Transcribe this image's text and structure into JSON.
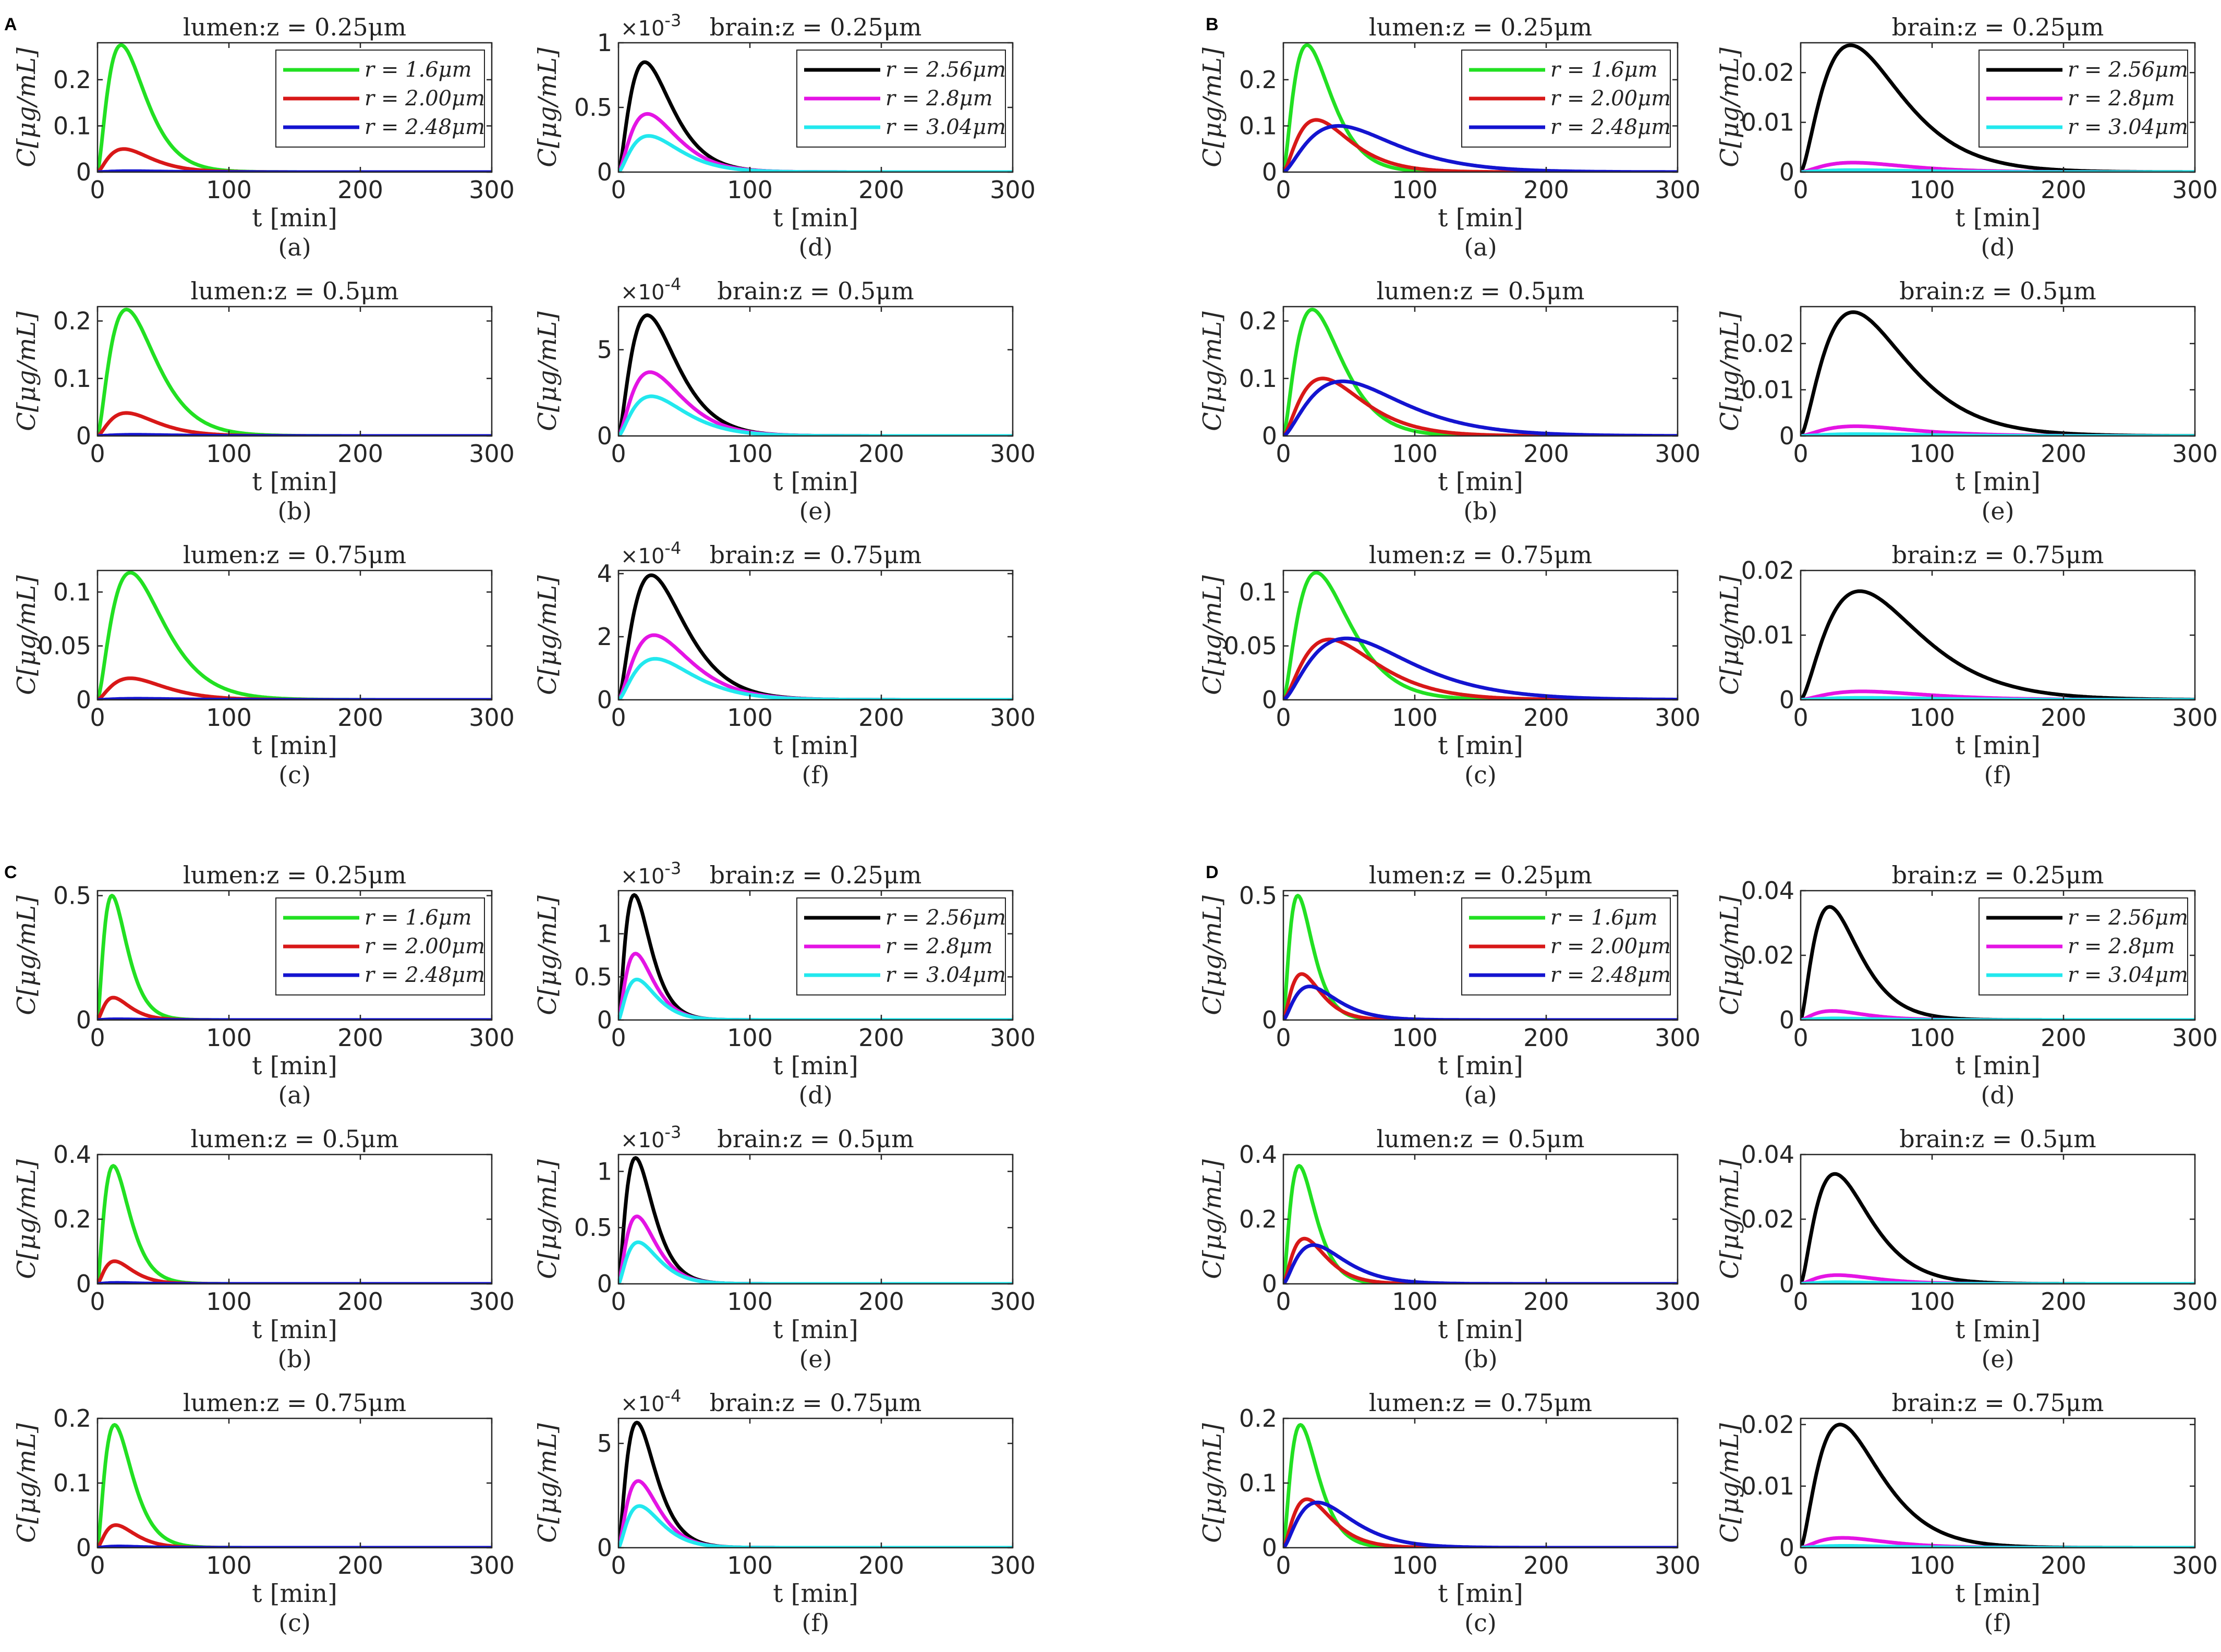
{
  "colors": {
    "green": "#22e022",
    "red": "#d81818",
    "blue": "#1414d0",
    "black": "#000000",
    "magenta": "#e414e4",
    "cyan": "#22e8ee",
    "axis": "#262626"
  },
  "common": {
    "xlabel": "t [min]",
    "ylabel": "C[μg/mL]",
    "xlim": [
      0,
      300
    ],
    "xticks": [
      "0",
      "100",
      "200",
      "300"
    ]
  },
  "panels": [
    "A",
    "B",
    "C",
    "D"
  ],
  "chart_data": [
    {
      "panel": "A",
      "sub": "(a)",
      "type": "line",
      "title": "lumen:z = 0.25μm",
      "ylim": [
        0,
        0.28
      ],
      "yticks": [
        [
          0,
          "0"
        ],
        [
          0.1,
          "0.1"
        ],
        [
          0.2,
          "0.2"
        ]
      ],
      "legend": [
        "r = 1.6μm",
        "r = 2.00μm",
        "r = 2.48μm"
      ],
      "series": [
        {
          "name": "r = 1.6μm",
          "color": "green",
          "peak": 0.275,
          "tpeak": 18
        },
        {
          "name": "r = 2.00μm",
          "color": "red",
          "peak": 0.05,
          "tpeak": 20
        },
        {
          "name": "r = 2.48μm",
          "color": "blue",
          "peak": 0.002,
          "tpeak": 25
        }
      ]
    },
    {
      "panel": "A",
      "sub": "(b)",
      "type": "line",
      "title": "lumen:z = 0.5μm",
      "ylim": [
        0,
        0.225
      ],
      "yticks": [
        [
          0,
          "0"
        ],
        [
          0.1,
          "0.1"
        ],
        [
          0.2,
          "0.2"
        ]
      ],
      "series": [
        {
          "name": "r = 1.6μm",
          "color": "green",
          "peak": 0.22,
          "tpeak": 22
        },
        {
          "name": "r = 2.00μm",
          "color": "red",
          "peak": 0.04,
          "tpeak": 22
        },
        {
          "name": "r = 2.48μm",
          "color": "blue",
          "peak": 0.002,
          "tpeak": 28
        }
      ]
    },
    {
      "panel": "A",
      "sub": "(c)",
      "type": "line",
      "title": "lumen:z = 0.75μm",
      "ylim": [
        0,
        0.12
      ],
      "yticks": [
        [
          0,
          "0"
        ],
        [
          0.05,
          "0.05"
        ],
        [
          0.1,
          "0.1"
        ]
      ],
      "series": [
        {
          "name": "r = 1.6μm",
          "color": "green",
          "peak": 0.118,
          "tpeak": 25
        },
        {
          "name": "r = 2.00μm",
          "color": "red",
          "peak": 0.02,
          "tpeak": 25
        },
        {
          "name": "r = 2.48μm",
          "color": "blue",
          "peak": 0.001,
          "tpeak": 30
        }
      ]
    },
    {
      "panel": "A",
      "sub": "(d)",
      "type": "line",
      "title": "brain:z = 0.25μm",
      "ylim": [
        0,
        1
      ],
      "exponent": "-3",
      "yticks": [
        [
          0,
          "0"
        ],
        [
          0.5,
          "0.5"
        ],
        [
          1,
          "1"
        ]
      ],
      "legend": [
        "r = 2.56μm",
        "r = 2.8μm",
        "r = 3.04μm"
      ],
      "series": [
        {
          "name": "r = 2.56μm",
          "color": "black",
          "peak": 0.85,
          "tpeak": 20
        },
        {
          "name": "r = 2.8μm",
          "color": "magenta",
          "peak": 0.45,
          "tpeak": 22
        },
        {
          "name": "r = 3.04μm",
          "color": "cyan",
          "peak": 0.28,
          "tpeak": 23
        }
      ]
    },
    {
      "panel": "A",
      "sub": "(e)",
      "type": "line",
      "title": "brain:z = 0.5μm",
      "ylim": [
        0,
        7.5
      ],
      "exponent": "-4",
      "yticks": [
        [
          0,
          "0"
        ],
        [
          5,
          "5"
        ]
      ],
      "series": [
        {
          "name": "r = 2.56μm",
          "color": "black",
          "peak": 7.0,
          "tpeak": 22
        },
        {
          "name": "r = 2.8μm",
          "color": "magenta",
          "peak": 3.7,
          "tpeak": 24
        },
        {
          "name": "r = 3.04μm",
          "color": "cyan",
          "peak": 2.3,
          "tpeak": 25
        }
      ]
    },
    {
      "panel": "A",
      "sub": "(f)",
      "type": "line",
      "title": "brain:z = 0.75μm",
      "ylim": [
        0,
        4.1
      ],
      "exponent": "-4",
      "yticks": [
        [
          0,
          "0"
        ],
        [
          2,
          "2"
        ],
        [
          4,
          "4"
        ]
      ],
      "series": [
        {
          "name": "r = 2.56μm",
          "color": "black",
          "peak": 3.95,
          "tpeak": 25
        },
        {
          "name": "r = 2.8μm",
          "color": "magenta",
          "peak": 2.05,
          "tpeak": 27
        },
        {
          "name": "r = 3.04μm",
          "color": "cyan",
          "peak": 1.3,
          "tpeak": 28
        }
      ]
    },
    {
      "panel": "B",
      "sub": "(a)",
      "type": "line",
      "title": "lumen:z = 0.25μm",
      "ylim": [
        0,
        0.28
      ],
      "yticks": [
        [
          0,
          "0"
        ],
        [
          0.1,
          "0.1"
        ],
        [
          0.2,
          "0.2"
        ]
      ],
      "legend": [
        "r = 1.6μm",
        "r = 2.00μm",
        "r = 2.48μm"
      ],
      "series": [
        {
          "name": "r = 1.6μm",
          "color": "green",
          "peak": 0.275,
          "tpeak": 18
        },
        {
          "name": "r = 2.00μm",
          "color": "red",
          "peak": 0.113,
          "tpeak": 25
        },
        {
          "name": "r = 2.48μm",
          "color": "blue",
          "peak": 0.1,
          "tpeak": 42
        }
      ]
    },
    {
      "panel": "B",
      "sub": "(b)",
      "type": "line",
      "title": "lumen:z = 0.5μm",
      "ylim": [
        0,
        0.225
      ],
      "yticks": [
        [
          0,
          "0"
        ],
        [
          0.1,
          "0.1"
        ],
        [
          0.2,
          "0.2"
        ]
      ],
      "series": [
        {
          "name": "r = 1.6μm",
          "color": "green",
          "peak": 0.22,
          "tpeak": 22
        },
        {
          "name": "r = 2.00μm",
          "color": "red",
          "peak": 0.1,
          "tpeak": 30
        },
        {
          "name": "r = 2.48μm",
          "color": "blue",
          "peak": 0.095,
          "tpeak": 45
        }
      ]
    },
    {
      "panel": "B",
      "sub": "(c)",
      "type": "line",
      "title": "lumen:z = 0.75μm",
      "ylim": [
        0,
        0.12
      ],
      "yticks": [
        [
          0,
          "0"
        ],
        [
          0.05,
          "0.05"
        ],
        [
          0.1,
          "0.1"
        ]
      ],
      "series": [
        {
          "name": "r = 1.6μm",
          "color": "green",
          "peak": 0.118,
          "tpeak": 25
        },
        {
          "name": "r = 2.00μm",
          "color": "red",
          "peak": 0.056,
          "tpeak": 35
        },
        {
          "name": "r = 2.48μm",
          "color": "blue",
          "peak": 0.057,
          "tpeak": 48
        }
      ]
    },
    {
      "panel": "B",
      "sub": "(d)",
      "type": "line",
      "title": "brain:z = 0.25μm",
      "ylim": [
        0,
        0.026
      ],
      "yticks": [
        [
          0,
          "0"
        ],
        [
          0.01,
          "0.01"
        ],
        [
          0.02,
          "0.02"
        ]
      ],
      "legend": [
        "r = 2.56μm",
        "r = 2.8μm",
        "r = 3.04μm"
      ],
      "series": [
        {
          "name": "r = 2.56μm",
          "color": "black",
          "peak": 0.0255,
          "tpeak": 38
        },
        {
          "name": "r = 2.8μm",
          "color": "magenta",
          "peak": 0.0019,
          "tpeak": 40
        },
        {
          "name": "r = 3.04μm",
          "color": "cyan",
          "peak": 0.0004,
          "tpeak": 42
        }
      ]
    },
    {
      "panel": "B",
      "sub": "(e)",
      "type": "line",
      "title": "brain:z = 0.5μm",
      "ylim": [
        0,
        0.028
      ],
      "yticks": [
        [
          0,
          "0"
        ],
        [
          0.01,
          "0.01"
        ],
        [
          0.02,
          "0.02"
        ]
      ],
      "series": [
        {
          "name": "r = 2.56μm",
          "color": "black",
          "peak": 0.0268,
          "tpeak": 40
        },
        {
          "name": "r = 2.8μm",
          "color": "magenta",
          "peak": 0.0021,
          "tpeak": 42
        },
        {
          "name": "r = 3.04μm",
          "color": "cyan",
          "peak": 0.0004,
          "tpeak": 44
        }
      ]
    },
    {
      "panel": "B",
      "sub": "(f)",
      "type": "line",
      "title": "brain:z = 0.75μm",
      "ylim": [
        0,
        0.02
      ],
      "yticks": [
        [
          0,
          "0"
        ],
        [
          0.01,
          "0.01"
        ],
        [
          0.02,
          "0.02"
        ]
      ],
      "series": [
        {
          "name": "r = 2.56μm",
          "color": "black",
          "peak": 0.0168,
          "tpeak": 45
        },
        {
          "name": "r = 2.8μm",
          "color": "magenta",
          "peak": 0.0013,
          "tpeak": 47
        },
        {
          "name": "r = 3.04μm",
          "color": "cyan",
          "peak": 0.0003,
          "tpeak": 48
        }
      ]
    },
    {
      "panel": "C",
      "sub": "(a)",
      "type": "line",
      "title": "lumen:z = 0.25μm",
      "ylim": [
        0,
        0.52
      ],
      "yticks": [
        [
          0,
          "0"
        ],
        [
          0.5,
          "0.5"
        ]
      ],
      "legend": [
        "r = 1.6μm",
        "r = 2.00μm",
        "r = 2.48μm"
      ],
      "series": [
        {
          "name": "r = 1.6μm",
          "color": "green",
          "peak": 0.5,
          "tpeak": 11
        },
        {
          "name": "r = 2.00μm",
          "color": "red",
          "peak": 0.09,
          "tpeak": 12
        },
        {
          "name": "r = 2.48μm",
          "color": "blue",
          "peak": 0.003,
          "tpeak": 15
        }
      ]
    },
    {
      "panel": "C",
      "sub": "(b)",
      "type": "line",
      "title": "lumen:z = 0.5μm",
      "ylim": [
        0,
        0.4
      ],
      "yticks": [
        [
          0,
          "0"
        ],
        [
          0.2,
          "0.2"
        ],
        [
          0.4,
          "0.4"
        ]
      ],
      "series": [
        {
          "name": "r = 1.6μm",
          "color": "green",
          "peak": 0.365,
          "tpeak": 12
        },
        {
          "name": "r = 2.00μm",
          "color": "red",
          "peak": 0.07,
          "tpeak": 13
        },
        {
          "name": "r = 2.48μm",
          "color": "blue",
          "peak": 0.003,
          "tpeak": 15
        }
      ]
    },
    {
      "panel": "C",
      "sub": "(c)",
      "type": "line",
      "title": "lumen:z = 0.75μm",
      "ylim": [
        0,
        0.2
      ],
      "yticks": [
        [
          0,
          "0"
        ],
        [
          0.1,
          "0.1"
        ],
        [
          0.2,
          "0.2"
        ]
      ],
      "series": [
        {
          "name": "r = 1.6μm",
          "color": "green",
          "peak": 0.19,
          "tpeak": 13
        },
        {
          "name": "r = 2.00μm",
          "color": "red",
          "peak": 0.035,
          "tpeak": 14
        },
        {
          "name": "r = 2.48μm",
          "color": "blue",
          "peak": 0.002,
          "tpeak": 16
        }
      ]
    },
    {
      "panel": "C",
      "sub": "(d)",
      "type": "line",
      "title": "brain:z = 0.25μm",
      "ylim": [
        0,
        1.5
      ],
      "exponent": "-3",
      "yticks": [
        [
          0,
          "0"
        ],
        [
          0.5,
          "0.5"
        ],
        [
          1,
          "1"
        ]
      ],
      "legend": [
        "r = 2.56μm",
        "r = 2.8μm",
        "r = 3.04μm"
      ],
      "series": [
        {
          "name": "r = 2.56μm",
          "color": "black",
          "peak": 1.45,
          "tpeak": 12
        },
        {
          "name": "r = 2.8μm",
          "color": "magenta",
          "peak": 0.77,
          "tpeak": 13
        },
        {
          "name": "r = 3.04μm",
          "color": "cyan",
          "peak": 0.47,
          "tpeak": 14
        }
      ]
    },
    {
      "panel": "C",
      "sub": "(e)",
      "type": "line",
      "title": "brain:z = 0.5μm",
      "ylim": [
        0,
        1.15
      ],
      "exponent": "-3",
      "yticks": [
        [
          0,
          "0"
        ],
        [
          0.5,
          "0.5"
        ],
        [
          1,
          "1"
        ]
      ],
      "series": [
        {
          "name": "r = 2.56μm",
          "color": "black",
          "peak": 1.12,
          "tpeak": 13
        },
        {
          "name": "r = 2.8μm",
          "color": "magenta",
          "peak": 0.6,
          "tpeak": 14
        },
        {
          "name": "r = 3.04μm",
          "color": "cyan",
          "peak": 0.37,
          "tpeak": 15
        }
      ]
    },
    {
      "panel": "C",
      "sub": "(f)",
      "type": "line",
      "title": "brain:z = 0.75μm",
      "ylim": [
        0,
        6.2
      ],
      "exponent": "-4",
      "yticks": [
        [
          0,
          "0"
        ],
        [
          5,
          "5"
        ]
      ],
      "series": [
        {
          "name": "r = 2.56μm",
          "color": "black",
          "peak": 6.0,
          "tpeak": 14
        },
        {
          "name": "r = 2.8μm",
          "color": "magenta",
          "peak": 3.2,
          "tpeak": 15
        },
        {
          "name": "r = 3.04μm",
          "color": "cyan",
          "peak": 2.0,
          "tpeak": 16
        }
      ]
    },
    {
      "panel": "D",
      "sub": "(a)",
      "type": "line",
      "title": "lumen:z = 0.25μm",
      "ylim": [
        0,
        0.52
      ],
      "yticks": [
        [
          0,
          "0"
        ],
        [
          0.5,
          "0.5"
        ]
      ],
      "legend": [
        "r = 1.6μm",
        "r = 2.00μm",
        "r = 2.48μm"
      ],
      "series": [
        {
          "name": "r = 1.6μm",
          "color": "green",
          "peak": 0.5,
          "tpeak": 11
        },
        {
          "name": "r = 2.00μm",
          "color": "red",
          "peak": 0.185,
          "tpeak": 14
        },
        {
          "name": "r = 2.48μm",
          "color": "blue",
          "peak": 0.135,
          "tpeak": 20
        }
      ]
    },
    {
      "panel": "D",
      "sub": "(b)",
      "type": "line",
      "title": "lumen:z = 0.5μm",
      "ylim": [
        0,
        0.4
      ],
      "yticks": [
        [
          0,
          "0"
        ],
        [
          0.2,
          "0.2"
        ],
        [
          0.4,
          "0.4"
        ]
      ],
      "series": [
        {
          "name": "r = 1.6μm",
          "color": "green",
          "peak": 0.365,
          "tpeak": 12
        },
        {
          "name": "r = 2.00μm",
          "color": "red",
          "peak": 0.14,
          "tpeak": 16
        },
        {
          "name": "r = 2.48μm",
          "color": "blue",
          "peak": 0.12,
          "tpeak": 23
        }
      ]
    },
    {
      "panel": "D",
      "sub": "(c)",
      "type": "line",
      "title": "lumen:z = 0.75μm",
      "ylim": [
        0,
        0.2
      ],
      "yticks": [
        [
          0,
          "0"
        ],
        [
          0.1,
          "0.1"
        ],
        [
          0.2,
          "0.2"
        ]
      ],
      "series": [
        {
          "name": "r = 1.6μm",
          "color": "green",
          "peak": 0.19,
          "tpeak": 13
        },
        {
          "name": "r = 2.00μm",
          "color": "red",
          "peak": 0.075,
          "tpeak": 18
        },
        {
          "name": "r = 2.48μm",
          "color": "blue",
          "peak": 0.07,
          "tpeak": 26
        }
      ]
    },
    {
      "panel": "D",
      "sub": "(d)",
      "type": "line",
      "title": "brain:z = 0.25μm",
      "ylim": [
        0,
        0.04
      ],
      "yticks": [
        [
          0,
          "0"
        ],
        [
          0.02,
          "0.02"
        ],
        [
          0.04,
          "0.04"
        ]
      ],
      "legend": [
        "r = 2.56μm",
        "r = 2.8μm",
        "r = 3.04μm"
      ],
      "series": [
        {
          "name": "r = 2.56μm",
          "color": "black",
          "peak": 0.035,
          "tpeak": 22
        },
        {
          "name": "r = 2.8μm",
          "color": "magenta",
          "peak": 0.0028,
          "tpeak": 24
        },
        {
          "name": "r = 3.04μm",
          "color": "cyan",
          "peak": 0.0005,
          "tpeak": 26
        }
      ]
    },
    {
      "panel": "D",
      "sub": "(e)",
      "type": "line",
      "title": "brain:z = 0.5μm",
      "ylim": [
        0,
        0.04
      ],
      "yticks": [
        [
          0,
          "0"
        ],
        [
          0.02,
          "0.02"
        ],
        [
          0.04,
          "0.04"
        ]
      ],
      "series": [
        {
          "name": "r = 2.56μm",
          "color": "black",
          "peak": 0.034,
          "tpeak": 26
        },
        {
          "name": "r = 2.8μm",
          "color": "magenta",
          "peak": 0.0027,
          "tpeak": 28
        },
        {
          "name": "r = 3.04μm",
          "color": "cyan",
          "peak": 0.0005,
          "tpeak": 30
        }
      ]
    },
    {
      "panel": "D",
      "sub": "(f)",
      "type": "line",
      "title": "brain:z = 0.75μm",
      "ylim": [
        0,
        0.021
      ],
      "yticks": [
        [
          0,
          "0"
        ],
        [
          0.01,
          "0.01"
        ],
        [
          0.02,
          "0.02"
        ]
      ],
      "series": [
        {
          "name": "r = 2.56μm",
          "color": "black",
          "peak": 0.02,
          "tpeak": 30
        },
        {
          "name": "r = 2.8μm",
          "color": "magenta",
          "peak": 0.0016,
          "tpeak": 32
        },
        {
          "name": "r = 3.04μm",
          "color": "cyan",
          "peak": 0.0003,
          "tpeak": 34
        }
      ]
    }
  ]
}
